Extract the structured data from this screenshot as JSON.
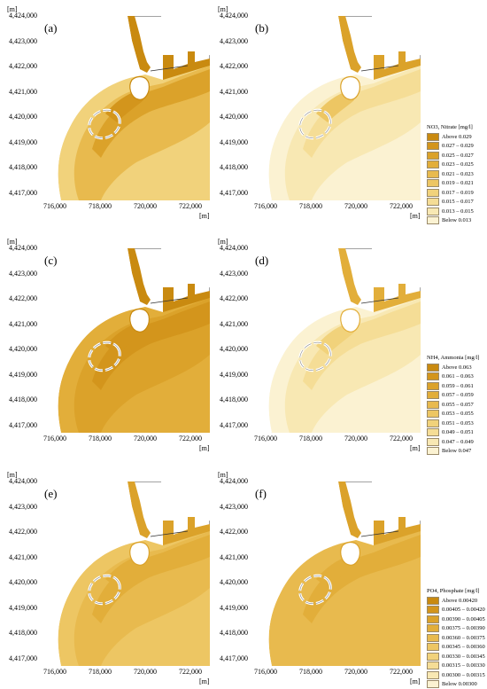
{
  "panels": [
    {
      "id": "a",
      "label": "(a)",
      "row": 0,
      "col": 0,
      "scheme": "nitrate-high"
    },
    {
      "id": "b",
      "label": "(b)",
      "row": 0,
      "col": 1,
      "scheme": "nitrate-low"
    },
    {
      "id": "c",
      "label": "(c)",
      "row": 1,
      "col": 0,
      "scheme": "ammonia-high"
    },
    {
      "id": "d",
      "label": "(d)",
      "row": 1,
      "col": 1,
      "scheme": "ammonia-low"
    },
    {
      "id": "e",
      "label": "(e)",
      "row": 2,
      "col": 0,
      "scheme": "phosphate-mid"
    },
    {
      "id": "f",
      "label": "(f)",
      "row": 2,
      "col": 1,
      "scheme": "phosphate-mid2"
    }
  ],
  "axis": {
    "unit_label": "[m]",
    "y_ticks": [
      "4,424,000",
      "4,423,000",
      "4,422,000",
      "4,421,000",
      "4,420,000",
      "4,419,000",
      "4,418,000",
      "4,417,000"
    ],
    "x_ticks": [
      "716,000",
      "718,000",
      "720,000",
      "722,000"
    ]
  },
  "legends": [
    {
      "title": "NO3, Nitrate [mg/l]",
      "entries": [
        "Above  0.029",
        "0.027  –  0.029",
        "0.025  –  0.027",
        "0.023  –  0.025",
        "0.021  –  0.023",
        "0.019  –  0.021",
        "0.017  –  0.019",
        "0.015  –  0.017",
        "0.013  –  0.015",
        "Below  0.013"
      ]
    },
    {
      "title": "NH4, Ammonia [mg/l]",
      "entries": [
        "Above  0.063",
        "0.061  –  0.063",
        "0.059  –  0.061",
        "0.057  –  0.059",
        "0.055  –  0.057",
        "0.053  –  0.055",
        "0.051  –  0.053",
        "0.049  –  0.051",
        "0.047  –  0.049",
        "Below  0.047"
      ]
    },
    {
      "title": "PO4, Phosphate [mg/l]",
      "entries": [
        "Above  0.00420",
        "0.00405 – 0.00420",
        "0.00390 – 0.00405",
        "0.00375 – 0.00390",
        "0.00360 – 0.00375",
        "0.00345 – 0.00360",
        "0.00330 – 0.00345",
        "0.00315 – 0.00330",
        "0.00300 – 0.00315",
        "Below  0.00300"
      ]
    }
  ],
  "colors": {
    "ramp": [
      "#c98a10",
      "#d3951c",
      "#dba22a",
      "#e2ae3a",
      "#e8ba4e",
      "#edc663",
      "#f1d27b",
      "#f5dd96",
      "#f8e8b3",
      "#fbf2d2"
    ],
    "legend_border": "#9a8a6a"
  }
}
